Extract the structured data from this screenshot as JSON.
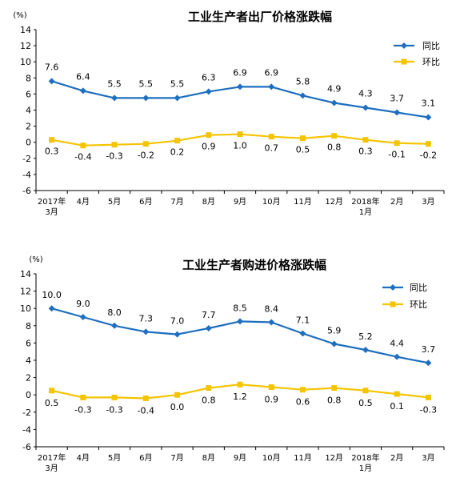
{
  "chart_data": [
    {
      "type": "line",
      "title": "工业生产者出厂价格涨跌幅",
      "unit": "(%)",
      "ylim": [
        -6,
        14
      ],
      "yticks": [
        "14",
        "12",
        "10",
        "8",
        "6",
        "4",
        "2",
        "0",
        "-2",
        "-4",
        "-6"
      ],
      "legend_position": "top-right",
      "categories": [
        {
          "line1": "2017年",
          "line2": "3月"
        },
        {
          "line1": "4月",
          "line2": ""
        },
        {
          "line1": "5月",
          "line2": ""
        },
        {
          "line1": "6月",
          "line2": ""
        },
        {
          "line1": "7月",
          "line2": ""
        },
        {
          "line1": "8月",
          "line2": ""
        },
        {
          "line1": "9月",
          "line2": ""
        },
        {
          "line1": "10月",
          "line2": ""
        },
        {
          "line1": "11月",
          "line2": ""
        },
        {
          "line1": "12月",
          "line2": ""
        },
        {
          "line1": "2018年",
          "line2": "1月"
        },
        {
          "line1": "2月",
          "line2": ""
        },
        {
          "line1": "3月",
          "line2": ""
        }
      ],
      "series": [
        {
          "name": "同比",
          "color": "#1f6fbf",
          "marker": "diamond",
          "values": [
            7.6,
            6.4,
            5.5,
            5.5,
            5.5,
            6.3,
            6.9,
            6.9,
            5.8,
            4.9,
            4.3,
            3.7,
            3.1
          ],
          "labels": [
            "7.6",
            "6.4",
            "5.5",
            "5.5",
            "5.5",
            "6.3",
            "6.9",
            "6.9",
            "5.8",
            "4.9",
            "4.3",
            "3.7",
            "3.1"
          ]
        },
        {
          "name": "环比",
          "color": "#f5c400",
          "marker": "square",
          "values": [
            0.3,
            -0.4,
            -0.3,
            -0.2,
            0.2,
            0.9,
            1.0,
            0.7,
            0.5,
            0.8,
            0.3,
            -0.1,
            -0.2
          ],
          "labels": [
            "0.3",
            "-0.4",
            "-0.3",
            "-0.2",
            "0.2",
            "0.9",
            "1.0",
            "0.7",
            "0.5",
            "0.8",
            "0.3",
            "-0.1",
            "-0.2"
          ]
        }
      ]
    },
    {
      "type": "line",
      "title": "工业生产者购进价格涨跌幅",
      "unit": "(%)",
      "ylim": [
        -6,
        14
      ],
      "yticks": [
        "14",
        "12",
        "10",
        "8",
        "6",
        "4",
        "2",
        "0",
        "-2",
        "-4",
        "-6"
      ],
      "legend_position": "top-right",
      "categories": [
        {
          "line1": "2017年",
          "line2": "3月"
        },
        {
          "line1": "4月",
          "line2": ""
        },
        {
          "line1": "5月",
          "line2": ""
        },
        {
          "line1": "6月",
          "line2": ""
        },
        {
          "line1": "7月",
          "line2": ""
        },
        {
          "line1": "8月",
          "line2": ""
        },
        {
          "line1": "9月",
          "line2": ""
        },
        {
          "line1": "10月",
          "line2": ""
        },
        {
          "line1": "11月",
          "line2": ""
        },
        {
          "line1": "12月",
          "line2": ""
        },
        {
          "line1": "2018年",
          "line2": "1月"
        },
        {
          "line1": "2月",
          "line2": ""
        },
        {
          "line1": "3月",
          "line2": ""
        }
      ],
      "series": [
        {
          "name": "同比",
          "color": "#1f6fbf",
          "marker": "diamond",
          "values": [
            10.0,
            9.0,
            8.0,
            7.3,
            7.0,
            7.7,
            8.5,
            8.4,
            7.1,
            5.9,
            5.2,
            4.4,
            3.7
          ],
          "labels": [
            "10.0",
            "9.0",
            "8.0",
            "7.3",
            "7.0",
            "7.7",
            "8.5",
            "8.4",
            "7.1",
            "5.9",
            "5.2",
            "4.4",
            "3.7"
          ]
        },
        {
          "name": "环比",
          "color": "#f5c400",
          "marker": "square",
          "values": [
            0.5,
            -0.3,
            -0.3,
            -0.4,
            0.0,
            0.8,
            1.2,
            0.9,
            0.6,
            0.8,
            0.5,
            0.1,
            -0.3
          ],
          "labels": [
            "0.5",
            "-0.3",
            "-0.3",
            "-0.4",
            "0.0",
            "0.8",
            "1.2",
            "0.9",
            "0.6",
            "0.8",
            "0.5",
            "0.1",
            "-0.3"
          ]
        }
      ]
    }
  ]
}
